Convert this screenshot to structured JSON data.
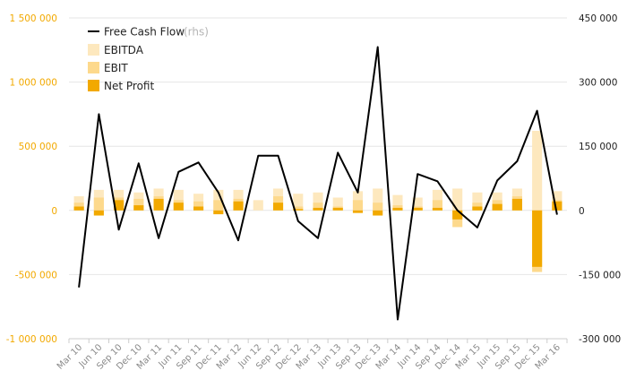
{
  "chart_data": {
    "type": "bar",
    "categories": [
      "Mar 10",
      "Jun 10",
      "Sep 10",
      "Dec 10",
      "Mar 11",
      "Jun 11",
      "Sep 11",
      "Dec 11",
      "Mar 12",
      "Jun 12",
      "Sep 12",
      "Dec 12",
      "Mar 13",
      "Jun 13",
      "Sep 13",
      "Dec 13",
      "Mar 14",
      "Jun 14",
      "Sep 14",
      "Dec 14",
      "Mar 15",
      "Jun 15",
      "Sep 15",
      "Dec 15",
      "Mar 16"
    ],
    "series": [
      {
        "name": "EBITDA",
        "axis": "left",
        "kind": "bar",
        "color": "#FDE8BE",
        "values": [
          110000,
          160000,
          160000,
          140000,
          170000,
          160000,
          130000,
          160000,
          160000,
          80000,
          170000,
          130000,
          140000,
          100000,
          150000,
          170000,
          120000,
          100000,
          160000,
          170000,
          140000,
          140000,
          170000,
          620000,
          150000
        ]
      },
      {
        "name": "EBIT",
        "axis": "left",
        "kind": "bar",
        "color": "#FDD98C",
        "values": [
          60000,
          100000,
          100000,
          90000,
          110000,
          80000,
          70000,
          80000,
          90000,
          0,
          110000,
          30000,
          60000,
          30000,
          80000,
          60000,
          40000,
          30000,
          80000,
          -130000,
          60000,
          80000,
          110000,
          -480000,
          80000
        ]
      },
      {
        "name": "Net Profit",
        "axis": "left",
        "kind": "bar",
        "color": "#F2A900",
        "values": [
          30000,
          -40000,
          80000,
          40000,
          90000,
          60000,
          30000,
          -30000,
          70000,
          0,
          60000,
          10000,
          20000,
          20000,
          -20000,
          -40000,
          20000,
          20000,
          20000,
          -70000,
          30000,
          50000,
          90000,
          -440000,
          70000
        ]
      },
      {
        "name": "Free Cash Flow",
        "note": "(rhs)",
        "axis": "right",
        "kind": "line",
        "color": "#000000",
        "values": [
          -180000,
          225000,
          -45000,
          110000,
          -65000,
          90000,
          112000,
          42000,
          -70000,
          128000,
          128000,
          -25000,
          -65000,
          135000,
          42000,
          382000,
          -255000,
          85000,
          68000,
          0,
          -40000,
          70000,
          115000,
          233000,
          -10000
        ]
      }
    ],
    "y_left": {
      "min": -1000000,
      "max": 1500000,
      "ticks": [
        -1000000,
        -500000,
        0,
        500000,
        1000000,
        1500000
      ],
      "labels": [
        "-1 000 000",
        "-500 000",
        "0",
        "500 000",
        "1 000 000",
        "1 500 000"
      ],
      "color": "#F2A900"
    },
    "y_right": {
      "min": -300000,
      "max": 450000,
      "ticks": [
        -300000,
        -150000,
        0,
        150000,
        300000,
        450000
      ],
      "labels": [
        "-300 000",
        "-150 000",
        "0",
        "150 000",
        "300 000",
        "450 000"
      ],
      "color": "#222222"
    },
    "grid": true,
    "legend_position": "top-left",
    "title": "",
    "xlabel": "",
    "ylabel": ""
  }
}
